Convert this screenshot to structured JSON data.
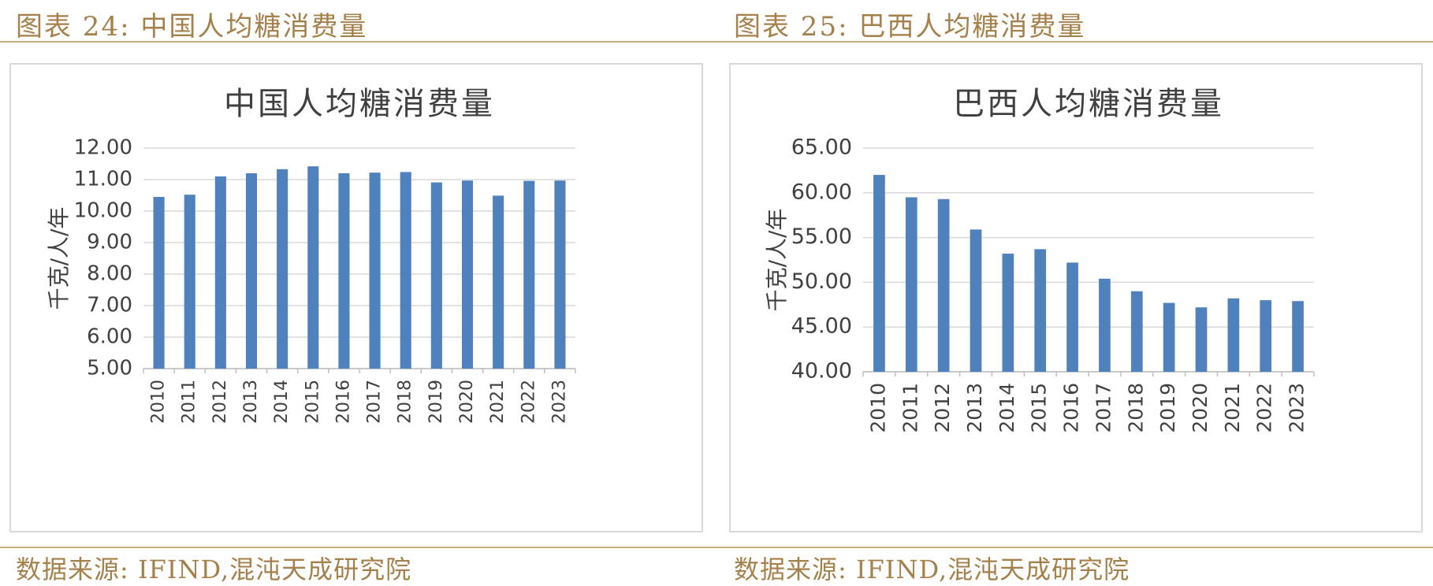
{
  "figures": [
    {
      "figure_label": "图表 24:",
      "figure_title": "中国人均糖消费量",
      "source": "数据来源: IFIND,混沌天成研究院",
      "chart_data": {
        "type": "bar",
        "title": "中国人均糖消费量",
        "ylabel": "千克/人/年",
        "xlabel": "",
        "categories": [
          "2010",
          "2011",
          "2012",
          "2013",
          "2014",
          "2015",
          "2016",
          "2017",
          "2018",
          "2019",
          "2020",
          "2021",
          "2022",
          "2023"
        ],
        "values": [
          10.45,
          10.52,
          11.1,
          11.2,
          11.33,
          11.42,
          11.2,
          11.22,
          11.24,
          10.91,
          10.97,
          10.49,
          10.96,
          10.97
        ],
        "ylim": [
          5,
          12
        ],
        "yticks": [
          "5.00",
          "6.00",
          "7.00",
          "8.00",
          "9.00",
          "10.00",
          "11.00",
          "12.00"
        ],
        "grid": true,
        "bar_color": "#4f81bd"
      }
    },
    {
      "figure_label": "图表 25:",
      "figure_title": "巴西人均糖消费量",
      "source": "数据来源: IFIND,混沌天成研究院",
      "chart_data": {
        "type": "bar",
        "title": "巴西人均糖消费量",
        "ylabel": "千克/人/年",
        "xlabel": "",
        "categories": [
          "2010",
          "2011",
          "2012",
          "2013",
          "2014",
          "2015",
          "2016",
          "2017",
          "2018",
          "2019",
          "2020",
          "2021",
          "2022",
          "2023"
        ],
        "values": [
          62.0,
          59.5,
          59.3,
          55.9,
          53.2,
          53.7,
          52.2,
          50.4,
          49.0,
          47.7,
          47.2,
          48.2,
          48.0,
          47.9
        ],
        "ylim": [
          40,
          65
        ],
        "yticks": [
          "40.00",
          "45.00",
          "50.00",
          "55.00",
          "60.00",
          "65.00"
        ],
        "grid": true,
        "bar_color": "#4f81bd"
      }
    }
  ]
}
